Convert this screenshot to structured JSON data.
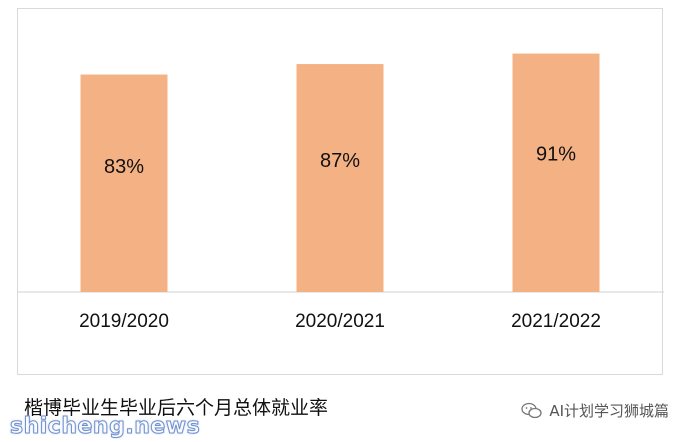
{
  "chart_data": {
    "type": "bar",
    "categories": [
      "2019/2020",
      "2020/2021",
      "2021/2022"
    ],
    "values": [
      83,
      87,
      91
    ],
    "data_labels": [
      "83%",
      "87%",
      "91%"
    ],
    "ylim": [
      0,
      100
    ],
    "bar_color": "#f4b183",
    "axis_color": "#d9d9d9",
    "grid": false,
    "legend": "none"
  },
  "caption": "楷博毕业生毕业后六个月总体就业率",
  "source": {
    "label": "AI计划学习狮城篇",
    "icon": "wechat-icon"
  },
  "watermark": "shicheng.news"
}
